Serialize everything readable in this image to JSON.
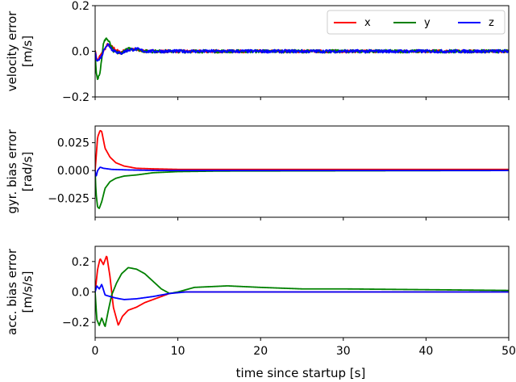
{
  "figure": {
    "xlabel": "time since startup [s]"
  },
  "colors": {
    "x": "#ff0000",
    "y": "#008000",
    "z": "#0000ff"
  },
  "chart_data": [
    {
      "type": "line",
      "ylabel": "velocity error\n[m/s]",
      "xlim": [
        0,
        50
      ],
      "ylim": [
        -0.2,
        0.2
      ],
      "yticks": [
        -0.2,
        0.0,
        0.2
      ],
      "ytick_labels": [
        "−0.2",
        "0.0",
        "0.2"
      ],
      "xticks": [
        0,
        10,
        20,
        30,
        40,
        50
      ],
      "legend": {
        "placement": "top-right",
        "entries": [
          "x",
          "y",
          "z"
        ]
      },
      "series": [
        {
          "name": "x",
          "color": "#ff0000",
          "noise": 0.006,
          "x": [
            0,
            0.1,
            0.3,
            0.6,
            1.0,
            1.5,
            2.0,
            3.0,
            4.0,
            5.0,
            6.0,
            50
          ],
          "y": [
            0.01,
            -0.02,
            -0.04,
            -0.02,
            0.0,
            0.03,
            0.02,
            -0.005,
            0.01,
            0.005,
            0.0,
            0.0
          ]
        },
        {
          "name": "y",
          "color": "#008000",
          "noise": 0.007,
          "x": [
            0,
            0.1,
            0.3,
            0.6,
            1.0,
            1.3,
            1.7,
            2.2,
            3.0,
            4.0,
            5.0,
            6.0,
            50
          ],
          "y": [
            0.0,
            -0.08,
            -0.12,
            -0.09,
            0.03,
            0.06,
            0.04,
            0.0,
            -0.01,
            0.01,
            0.01,
            0.0,
            0.0
          ]
        },
        {
          "name": "z",
          "color": "#0000ff",
          "noise": 0.007,
          "x": [
            0,
            0.1,
            0.4,
            0.8,
            1.2,
            1.6,
            2.0,
            3.0,
            4.0,
            5.0,
            6.0,
            50
          ],
          "y": [
            0.0,
            -0.03,
            -0.04,
            -0.02,
            0.02,
            0.03,
            0.01,
            -0.01,
            0.005,
            0.01,
            0.0,
            0.0
          ]
        }
      ]
    },
    {
      "type": "line",
      "ylabel": "gyr. bias error\n[rad/s]",
      "xlim": [
        0,
        50
      ],
      "ylim": [
        -0.042,
        0.04
      ],
      "yticks": [
        -0.025,
        0.0,
        0.025
      ],
      "ytick_labels": [
        "−0.025",
        "0.000",
        "0.025"
      ],
      "xticks": [
        0,
        10,
        20,
        30,
        40,
        50
      ],
      "series": [
        {
          "name": "x",
          "color": "#ff0000",
          "noise": 0.0,
          "x": [
            0,
            0.1,
            0.3,
            0.6,
            0.8,
            1.2,
            1.8,
            2.5,
            3.5,
            5.0,
            7.0,
            10.0,
            50
          ],
          "y": [
            0.0,
            0.01,
            0.03,
            0.036,
            0.035,
            0.02,
            0.012,
            0.007,
            0.004,
            0.002,
            0.0015,
            0.001,
            0.001
          ]
        },
        {
          "name": "y",
          "color": "#008000",
          "noise": 0.0,
          "x": [
            0,
            0.1,
            0.3,
            0.5,
            0.8,
            1.2,
            1.8,
            2.5,
            3.5,
            5.0,
            7.0,
            10.0,
            15.0,
            50
          ],
          "y": [
            0.0,
            -0.02,
            -0.033,
            -0.034,
            -0.028,
            -0.016,
            -0.01,
            -0.007,
            -0.005,
            -0.004,
            -0.002,
            -0.001,
            -0.0005,
            0.0
          ]
        },
        {
          "name": "z",
          "color": "#0000ff",
          "noise": 0.0,
          "x": [
            0,
            0.1,
            0.3,
            0.6,
            1.0,
            2.0,
            4.0,
            8.0,
            50
          ],
          "y": [
            0.0,
            -0.006,
            0.0,
            0.003,
            0.002,
            0.001,
            0.0005,
            0.0,
            0.0
          ]
        }
      ]
    },
    {
      "type": "line",
      "ylabel": "acc. bias error\n[m/s/s]",
      "xlim": [
        0,
        50
      ],
      "ylim": [
        -0.3,
        0.3
      ],
      "yticks": [
        -0.2,
        0.0,
        0.2
      ],
      "ytick_labels": [
        "−0.2",
        "0.0",
        "0.2"
      ],
      "xticks": [
        0,
        10,
        20,
        30,
        40,
        50
      ],
      "xtick_labels": [
        "0",
        "10",
        "20",
        "30",
        "40",
        "50"
      ],
      "series": [
        {
          "name": "x",
          "color": "#ff0000",
          "noise": 0.0,
          "x": [
            0,
            0.3,
            0.6,
            1.0,
            1.4,
            1.8,
            2.2,
            2.8,
            3.3,
            4.0,
            5.0,
            6.0,
            7.5,
            9.0,
            10.5,
            12.0,
            15.0,
            50
          ],
          "y": [
            0.0,
            0.15,
            0.22,
            0.18,
            0.24,
            0.1,
            -0.1,
            -0.22,
            -0.16,
            -0.12,
            -0.1,
            -0.07,
            -0.04,
            -0.01,
            0.0,
            0.0,
            0.0,
            0.0
          ]
        },
        {
          "name": "y",
          "color": "#008000",
          "noise": 0.0,
          "x": [
            0,
            0.2,
            0.5,
            0.8,
            1.2,
            1.6,
            2.0,
            2.6,
            3.2,
            4.0,
            5.0,
            6.0,
            7.0,
            8.0,
            9.0,
            10.0,
            12.0,
            16.0,
            20.0,
            25.0,
            30.0,
            40.0,
            50.0
          ],
          "y": [
            0.0,
            -0.18,
            -0.22,
            -0.17,
            -0.23,
            -0.12,
            -0.02,
            0.06,
            0.12,
            0.16,
            0.15,
            0.12,
            0.07,
            0.02,
            -0.01,
            0.0,
            0.03,
            0.04,
            0.03,
            0.02,
            0.02,
            0.015,
            0.01
          ]
        },
        {
          "name": "z",
          "color": "#0000ff",
          "noise": 0.0,
          "x": [
            0,
            0.2,
            0.5,
            0.8,
            1.2,
            1.8,
            2.5,
            3.5,
            5.0,
            7.0,
            9.0,
            11.0,
            14.0,
            20.0,
            50.0
          ],
          "y": [
            0.0,
            0.04,
            0.02,
            0.05,
            -0.02,
            -0.03,
            -0.04,
            -0.05,
            -0.045,
            -0.03,
            -0.01,
            0.0,
            0.0,
            0.0,
            0.0
          ]
        }
      ]
    }
  ]
}
